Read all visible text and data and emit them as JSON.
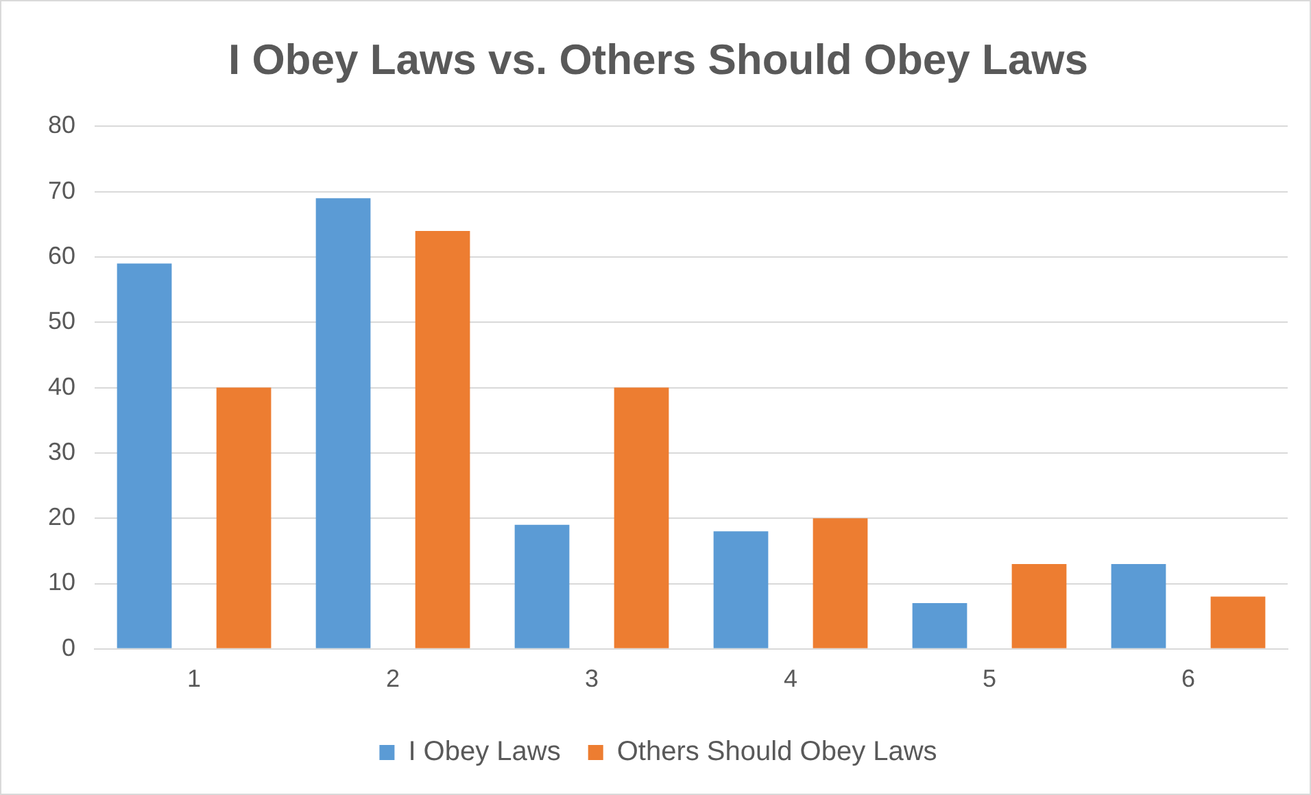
{
  "chart_data": {
    "type": "bar",
    "title": "I Obey Laws vs. Others Should Obey Laws",
    "categories": [
      "1",
      "2",
      "3",
      "4",
      "5",
      "6"
    ],
    "series": [
      {
        "name": "I Obey Laws",
        "color": "#5b9bd5",
        "values": [
          59,
          69,
          19,
          18,
          7,
          13
        ]
      },
      {
        "name": "Others Should Obey Laws",
        "color": "#ed7d31",
        "values": [
          40,
          64,
          40,
          20,
          13,
          8
        ]
      }
    ],
    "ylim": [
      0,
      80
    ],
    "yticks": [
      0,
      10,
      20,
      30,
      40,
      50,
      60,
      70,
      80
    ],
    "grid": "y",
    "legend": "bottom"
  }
}
